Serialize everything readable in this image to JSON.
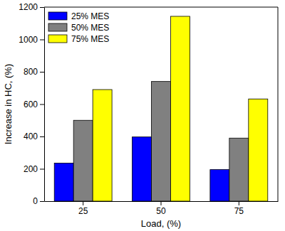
{
  "chart_data": {
    "type": "bar",
    "x_label": "Load, (%)",
    "y_label": "Increase in HC, (%)",
    "categories": [
      25,
      50,
      75
    ],
    "series": [
      {
        "name": "25% MES",
        "color": "#0000ff",
        "values": [
          235,
          397,
          195
        ]
      },
      {
        "name": "50% MES",
        "color": "#808080",
        "values": [
          500,
          740,
          390
        ]
      },
      {
        "name": "75% MES",
        "color": "#ffff00",
        "values": [
          690,
          1143,
          632
        ]
      }
    ],
    "ylim": [
      0,
      1200
    ],
    "yticks": [
      0,
      200,
      400,
      600,
      800,
      1000,
      1200
    ],
    "grid": false,
    "legend": "top-left"
  }
}
